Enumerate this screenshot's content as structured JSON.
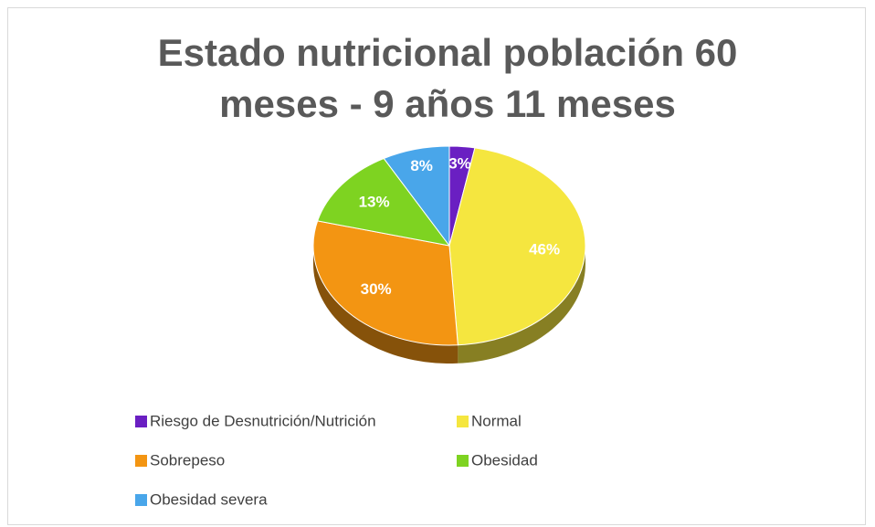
{
  "chart_data": {
    "type": "pie",
    "title": "Estado nutricional población 60 meses - 9 años 11 meses",
    "categories": [
      "Riesgo de Desnutrición/Nutrición",
      "Normal",
      "Sobrepeso",
      "Obesidad",
      "Obesidad severa"
    ],
    "values": [
      3,
      46,
      30,
      13,
      8
    ],
    "value_labels": [
      "3%",
      "46%",
      "30%",
      "13%",
      "8%"
    ],
    "colors": [
      "#6a1fc2",
      "#f5e63f",
      "#f39512",
      "#7ed321",
      "#49a6ea"
    ],
    "legend": "bottom"
  }
}
